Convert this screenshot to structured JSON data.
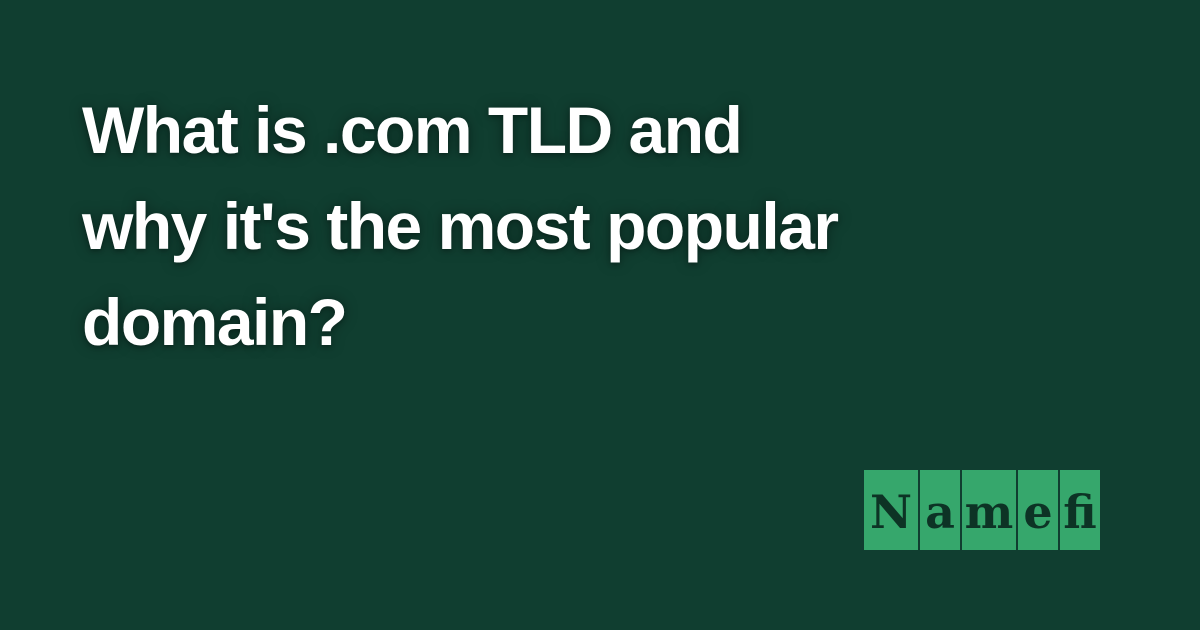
{
  "article": {
    "title_lines": [
      "What is .com TLD and",
      "why it's the most popular",
      "domain?"
    ]
  },
  "brand": {
    "logo_letters": [
      "N",
      "a",
      "m",
      "e",
      "fi"
    ]
  },
  "colors": {
    "background": "#103e30",
    "title_text": "#ffffff",
    "logo_tile": "#36a76c",
    "logo_text": "#0d3325"
  }
}
